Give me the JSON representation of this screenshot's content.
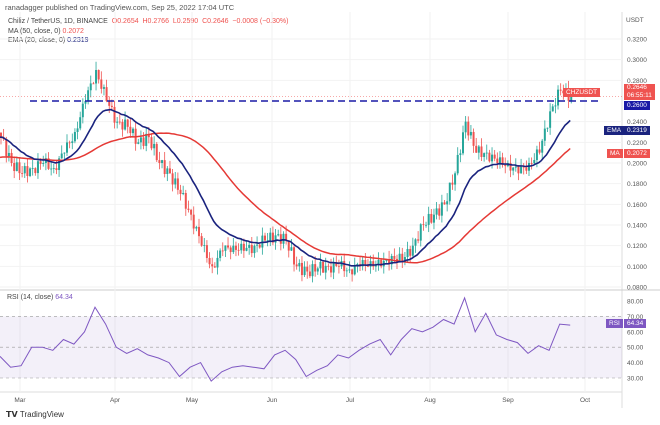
{
  "header": {
    "published": "ranadagger published on TradingView.com, Sep 25, 2022 17:04 UTC"
  },
  "legend": {
    "symbol": "Chiliz / TetherUS, 1D, BINANCE",
    "o": "O0.2654",
    "h": "H0.2766",
    "l": "L0.2590",
    "c": "C0.2646",
    "chg": "−0.0008 (−0.30%)",
    "ma": "MA (50, close, 0)",
    "ma_val": "0.2072",
    "ema": "EMA (20, close, 0)",
    "ema_val": "0.2319",
    "rsi": "RSI (14, close)",
    "rsi_val": "64.34"
  },
  "tags": {
    "symbol": "CHZUSDT",
    "price": "0.2646",
    "countdown": "06:55:11",
    "level": "0.2600",
    "ema": "EMA",
    "ema_val": "0.2319",
    "ma": "MA",
    "ma_val": "0.2072",
    "rsi": "RSI",
    "rsi_val": "64.34"
  },
  "footer": {
    "brand": "TradingView"
  },
  "colors": {
    "up": "#26a69a",
    "down": "#ef5350",
    "ema": "#1a237e",
    "ma": "#e53935",
    "rsi": "#7e57c2",
    "level": "#1a1aa6"
  },
  "chart_data": {
    "type": "candlestick",
    "currency": "USDT",
    "y_ticks": [
      "0.3200",
      "0.3000",
      "0.2800",
      "0.2400",
      "0.2200",
      "0.2000",
      "0.1800",
      "0.1600",
      "0.1400",
      "0.1200",
      "0.1000",
      "0.0800"
    ],
    "ylim": [
      0.08,
      0.32
    ],
    "x_ticks": [
      "Mar",
      "Apr",
      "May",
      "Jun",
      "Jul",
      "Aug",
      "Sep",
      "Oct"
    ],
    "start": "2022-02-22",
    "step_days": 4,
    "closes": [
      0.225,
      0.2,
      0.19,
      0.195,
      0.2,
      0.195,
      0.21,
      0.23,
      0.26,
      0.29,
      0.26,
      0.24,
      0.235,
      0.22,
      0.225,
      0.2,
      0.19,
      0.17,
      0.15,
      0.12,
      0.1,
      0.115,
      0.12,
      0.115,
      0.12,
      0.125,
      0.13,
      0.125,
      0.1,
      0.095,
      0.098,
      0.1,
      0.1,
      0.097,
      0.1,
      0.105,
      0.1,
      0.11,
      0.105,
      0.12,
      0.14,
      0.15,
      0.16,
      0.19,
      0.24,
      0.21,
      0.21,
      0.2,
      0.2,
      0.19,
      0.2,
      0.21,
      0.25,
      0.27,
      0.2646
    ],
    "resistance": 0.26,
    "rsi": {
      "ylim": [
        20,
        85
      ],
      "ticks": [
        "80.00",
        "70.00",
        "60.00",
        "50.00",
        "40.00",
        "30.00"
      ],
      "values": [
        44,
        37,
        38,
        50,
        50,
        48,
        55,
        52,
        60,
        76,
        65,
        50,
        46,
        49,
        45,
        43,
        40,
        31,
        37,
        40,
        28,
        34,
        37,
        38,
        37,
        36,
        45,
        48,
        42,
        31,
        35,
        38,
        45,
        43,
        48,
        52,
        55,
        45,
        55,
        62,
        60,
        63,
        68,
        65,
        82,
        60,
        72,
        58,
        55,
        53,
        46,
        51,
        48,
        65,
        64.34
      ]
    }
  }
}
